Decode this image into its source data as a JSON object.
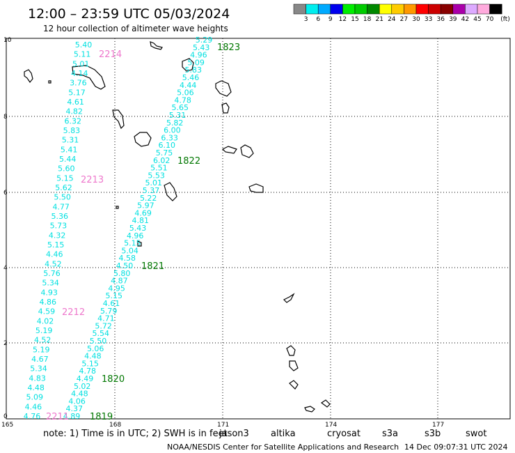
{
  "title": "12:00 – 23:59 UTC 05/03/2024",
  "subtitle": "12 hour collection of altimeter wave heights",
  "color_scale": {
    "labels": [
      "3",
      "6",
      "9",
      "12",
      "15",
      "18",
      "21",
      "24",
      "27",
      "30",
      "33",
      "36",
      "39",
      "42",
      "45",
      "70"
    ],
    "unit": "(ft)",
    "colors": [
      "#888888",
      "#00eeee",
      "#00aaff",
      "#0000ee",
      "#00ee00",
      "#00cc00",
      "#008800",
      "#ffff00",
      "#ffcc00",
      "#ff9900",
      "#ff0000",
      "#cc0000",
      "#880000",
      "#aa00aa",
      "#ddaaff",
      "#ffaadd",
      "#000000"
    ]
  },
  "x_ticks": [
    "165",
    "168",
    "171",
    "174",
    "177"
  ],
  "y_ticks": [
    "0",
    "2",
    "4",
    "6",
    "8",
    "10"
  ],
  "tracks": [
    {
      "color": "#00e0e0",
      "values": [
        "5.40",
        "5.11",
        "5.01",
        "4.14",
        "3.76",
        "5.17",
        "4.61",
        "4.82",
        "6.32",
        "5.83",
        "5.31",
        "5.41",
        "5.44",
        "5.60",
        "5.15",
        "5.62",
        "5.50",
        "4.77",
        "5.36",
        "5.73",
        "4.32",
        "5.15",
        "4.46",
        "4.52",
        "5.76",
        "5.34",
        "4.93",
        "4.86",
        "4.59",
        "4.02",
        "5.19",
        "4.52",
        "5.19",
        "4.67",
        "5.34",
        "4.83",
        "4.48",
        "5.09",
        "4.46",
        "4.76"
      ]
    },
    {
      "color": "#00e0e0",
      "values": [
        "5.29",
        "5.43",
        "4.96",
        "5.09",
        "5.83",
        "5.46",
        "4.44",
        "5.06",
        "4.78",
        "5.65",
        "5.31",
        "5.82",
        "6.00",
        "6.33",
        "6.10",
        "5.75",
        "6.02",
        "5.51",
        "5.53",
        "5.01",
        "5.37",
        "5.22",
        "5.97",
        "4.69",
        "4.81",
        "5.43",
        "4.96",
        "5.15",
        "5.04",
        "4.58",
        "4.50",
        "5.80",
        "4.87",
        "4.95",
        "5.15",
        "4.61",
        "5.79",
        "4.71",
        "5.72",
        "5.54",
        "5.50",
        "5.06",
        "4.48",
        "5.15",
        "4.78",
        "4.49",
        "5.02",
        "4.48",
        "4.06",
        "4.37",
        "4.89"
      ]
    }
  ],
  "pass_labels": [
    {
      "text": "2214",
      "color": "#ee77cc"
    },
    {
      "text": "2213",
      "color": "#ee77cc"
    },
    {
      "text": "2212",
      "color": "#ee77cc"
    },
    {
      "text": "2211",
      "color": "#ee77cc"
    },
    {
      "text": "1823",
      "color": "#007700"
    },
    {
      "text": "1822",
      "color": "#007700"
    },
    {
      "text": "1821",
      "color": "#007700"
    },
    {
      "text": "1820",
      "color": "#007700"
    },
    {
      "text": "1819",
      "color": "#007700"
    }
  ],
  "footer": {
    "note": "note:  1) Time is in UTC;  2) SWH is in feet",
    "satellites": [
      {
        "name": "jason3",
        "color": "#007700"
      },
      {
        "name": "altika",
        "color": "#ff9900"
      },
      {
        "name": "cryosat",
        "color": "#ff0000"
      },
      {
        "name": "s3a",
        "color": "#aa0000"
      },
      {
        "name": "s3b",
        "color": "#ccaaff"
      },
      {
        "name": "swot",
        "color": "#ff99cc"
      }
    ],
    "credit": "NOAA/NESDIS Center for Satellite Applications and Research",
    "generated": "14 Dec 09:07:31 UTC 2024"
  }
}
